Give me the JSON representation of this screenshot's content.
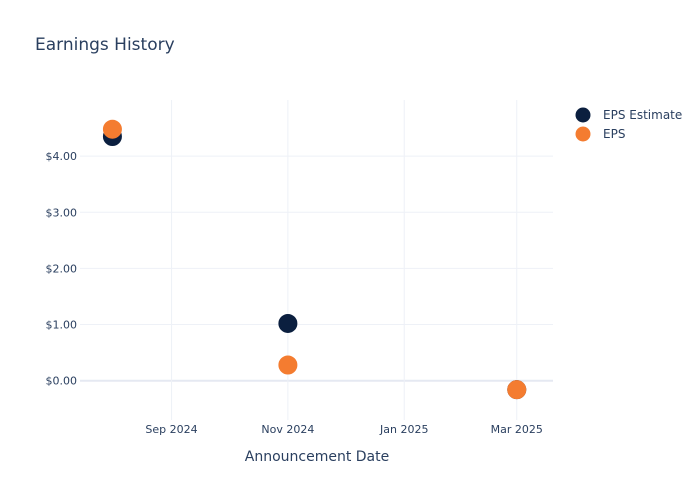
{
  "chart_data": {
    "type": "scatter",
    "title": "Earnings History",
    "xlabel": "Announcement Date",
    "ylabel": "",
    "x_ticks": [
      "Sep 2024",
      "Nov 2024",
      "Jan 2025",
      "Mar 2025"
    ],
    "x_tick_dates": [
      "2024-09-01",
      "2024-11-01",
      "2025-01-01",
      "2025-03-01"
    ],
    "xlim": [
      "2024-07-15",
      "2025-03-20"
    ],
    "y_ticks": [
      "$0.00",
      "$1.00",
      "$2.00",
      "$3.00",
      "$4.00"
    ],
    "y_tick_values": [
      0,
      1,
      2,
      3,
      4
    ],
    "ylim": [
      -0.7,
      5.0
    ],
    "grid": true,
    "legend_position": "top-right",
    "series": [
      {
        "name": "EPS Estimate",
        "color": "#0b1f3f",
        "points": [
          {
            "x": "2024-08-01",
            "y": 4.35
          },
          {
            "x": "2024-11-01",
            "y": 1.02
          },
          {
            "x": "2025-03-01",
            "y": -0.16
          }
        ]
      },
      {
        "name": "EPS",
        "color": "#f47c30",
        "points": [
          {
            "x": "2024-08-01",
            "y": 4.48
          },
          {
            "x": "2024-11-01",
            "y": 0.28
          },
          {
            "x": "2025-03-01",
            "y": -0.16
          }
        ]
      }
    ]
  }
}
